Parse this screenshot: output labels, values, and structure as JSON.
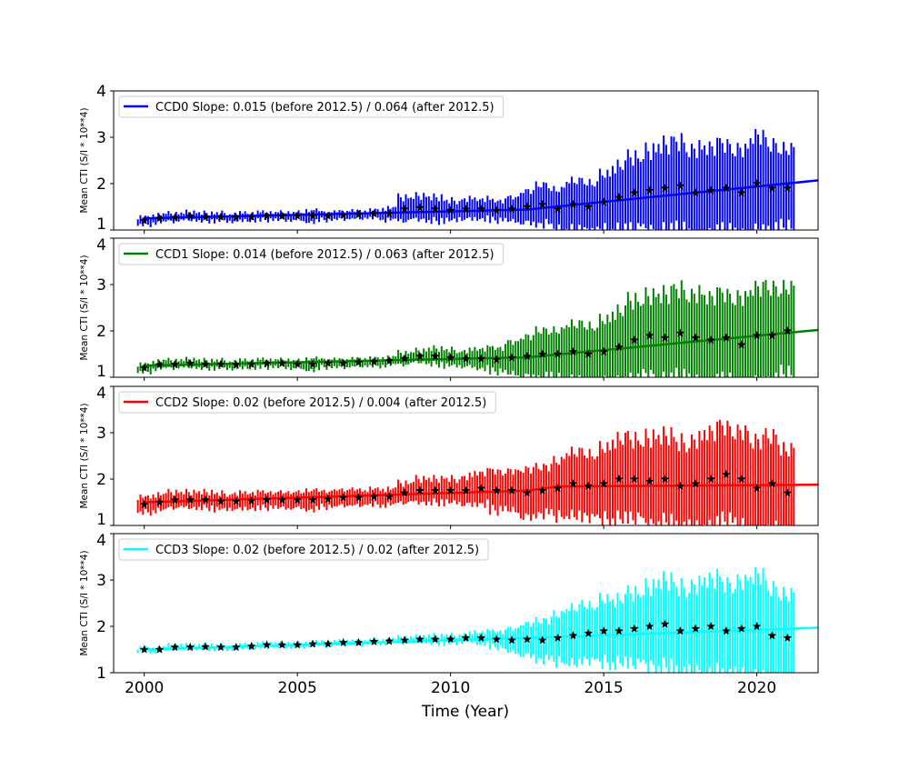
{
  "chart_data": [
    {
      "type": "scatter",
      "legend": "CCD0 Slope: 0.015 (before 2012.5) / 0.064 (after 2012.5)",
      "color": "#0000ff",
      "ylabel": "Mean CTI (S/I * 10**4)",
      "ylim": [
        1,
        4
      ],
      "xlim": [
        1999,
        2022
      ],
      "yticks": [
        "1",
        "2",
        "3",
        "4"
      ],
      "fit": [
        [
          2000,
          1.25
        ],
        [
          2012.5,
          1.44
        ],
        [
          2022,
          2.07
        ]
      ],
      "values": [
        1.2,
        1.25,
        1.27,
        1.3,
        1.28,
        1.28,
        1.27,
        1.28,
        1.3,
        1.3,
        1.3,
        1.3,
        1.3,
        1.32,
        1.33,
        1.35,
        1.35,
        1.45,
        1.48,
        1.45,
        1.42,
        1.45,
        1.45,
        1.42,
        1.45,
        1.5,
        1.55,
        1.45,
        1.55,
        1.5,
        1.6,
        1.7,
        1.8,
        1.85,
        1.9,
        1.95,
        1.8,
        1.85,
        1.9,
        1.8,
        2.0,
        1.9,
        1.9
      ],
      "errors": [
        0.1,
        0.1,
        0.1,
        0.1,
        0.1,
        0.1,
        0.1,
        0.1,
        0.1,
        0.1,
        0.1,
        0.15,
        0.1,
        0.1,
        0.1,
        0.1,
        0.15,
        0.3,
        0.3,
        0.3,
        0.25,
        0.25,
        0.25,
        0.25,
        0.3,
        0.4,
        0.5,
        0.5,
        0.6,
        0.6,
        0.7,
        0.8,
        0.9,
        1.0,
        1.1,
        1.1,
        1.1,
        1.1,
        1.1,
        1.1,
        1.2,
        1.1,
        1.0
      ]
    },
    {
      "type": "scatter",
      "legend": "CCD1 Slope: 0.014 (before 2012.5) / 0.063 (after 2012.5)",
      "color": "#008000",
      "ylabel": "Mean CTI (S/I * 10**4)",
      "ylim": [
        1,
        4
      ],
      "xlim": [
        1999,
        2022
      ],
      "yticks": [
        "1",
        "2",
        "3",
        "4"
      ],
      "fit": [
        [
          2000,
          1.25
        ],
        [
          2012.5,
          1.43
        ],
        [
          2022,
          2.02
        ]
      ],
      "values": [
        1.2,
        1.27,
        1.28,
        1.3,
        1.28,
        1.28,
        1.27,
        1.28,
        1.3,
        1.3,
        1.28,
        1.28,
        1.3,
        1.3,
        1.32,
        1.33,
        1.35,
        1.4,
        1.45,
        1.45,
        1.42,
        1.4,
        1.4,
        1.38,
        1.42,
        1.45,
        1.5,
        1.5,
        1.55,
        1.5,
        1.55,
        1.65,
        1.8,
        1.9,
        1.85,
        1.95,
        1.85,
        1.8,
        1.85,
        1.7,
        1.9,
        1.9,
        2.0
      ],
      "errors": [
        0.1,
        0.1,
        0.1,
        0.1,
        0.1,
        0.1,
        0.1,
        0.1,
        0.1,
        0.1,
        0.1,
        0.15,
        0.1,
        0.1,
        0.1,
        0.1,
        0.1,
        0.15,
        0.15,
        0.2,
        0.2,
        0.2,
        0.25,
        0.3,
        0.4,
        0.5,
        0.6,
        0.6,
        0.7,
        0.7,
        0.8,
        0.9,
        1.0,
        1.0,
        1.1,
        1.1,
        1.1,
        1.1,
        1.1,
        1.2,
        1.2,
        1.2,
        1.1
      ]
    },
    {
      "type": "scatter",
      "legend": "CCD2 Slope: 0.02 (before 2012.5) / 0.004 (after 2012.5)",
      "color": "#ff0000",
      "ylabel": "Mean CTI (S/I * 10**4)",
      "ylim": [
        1,
        4
      ],
      "xlim": [
        1999,
        2022
      ],
      "yticks": [
        "1",
        "2",
        "3",
        "4"
      ],
      "fit": [
        [
          2000,
          1.5
        ],
        [
          2012.5,
          1.75
        ],
        [
          2013.5,
          1.84
        ],
        [
          2022,
          1.88
        ]
      ],
      "values": [
        1.45,
        1.5,
        1.55,
        1.55,
        1.55,
        1.52,
        1.52,
        1.53,
        1.55,
        1.55,
        1.55,
        1.55,
        1.57,
        1.6,
        1.6,
        1.62,
        1.62,
        1.7,
        1.75,
        1.75,
        1.75,
        1.75,
        1.8,
        1.75,
        1.75,
        1.7,
        1.75,
        1.8,
        1.9,
        1.85,
        1.9,
        2.0,
        2.0,
        1.95,
        2.0,
        1.85,
        1.9,
        2.0,
        2.1,
        2.0,
        1.8,
        1.9,
        1.7
      ],
      "errors": [
        0.2,
        0.2,
        0.2,
        0.2,
        0.2,
        0.2,
        0.2,
        0.2,
        0.2,
        0.2,
        0.2,
        0.25,
        0.2,
        0.2,
        0.2,
        0.2,
        0.2,
        0.25,
        0.3,
        0.3,
        0.3,
        0.35,
        0.4,
        0.5,
        0.5,
        0.6,
        0.6,
        0.7,
        0.8,
        0.8,
        0.9,
        1.0,
        1.0,
        1.1,
        1.1,
        1.1,
        1.1,
        1.2,
        1.2,
        1.2,
        1.2,
        1.2,
        1.1
      ]
    },
    {
      "type": "scatter",
      "legend": "CCD3 Slope: 0.02 (before 2012.5) / 0.02 (after 2012.5)",
      "color": "#00ffff",
      "ylabel": "Mean CTI (S/I * 10**4)",
      "ylim": [
        1,
        4
      ],
      "xlim": [
        1999,
        2022
      ],
      "yticks": [
        "1",
        "2",
        "3",
        "4"
      ],
      "fit": [
        [
          2000,
          1.5
        ],
        [
          2012.5,
          1.75
        ],
        [
          2022,
          1.97
        ]
      ],
      "values": [
        1.5,
        1.5,
        1.55,
        1.55,
        1.56,
        1.55,
        1.55,
        1.57,
        1.6,
        1.6,
        1.6,
        1.62,
        1.62,
        1.65,
        1.65,
        1.67,
        1.68,
        1.7,
        1.72,
        1.72,
        1.72,
        1.75,
        1.75,
        1.72,
        1.7,
        1.72,
        1.7,
        1.75,
        1.8,
        1.85,
        1.9,
        1.9,
        1.95,
        2.0,
        2.05,
        1.9,
        1.95,
        2.0,
        1.9,
        1.95,
        2.0,
        1.8,
        1.75
      ],
      "errors": [
        0.05,
        0.05,
        0.05,
        0.05,
        0.05,
        0.05,
        0.05,
        0.05,
        0.05,
        0.05,
        0.05,
        0.05,
        0.05,
        0.05,
        0.05,
        0.05,
        0.05,
        0.07,
        0.07,
        0.1,
        0.1,
        0.1,
        0.15,
        0.2,
        0.3,
        0.4,
        0.5,
        0.6,
        0.7,
        0.7,
        0.8,
        0.8,
        0.9,
        1.0,
        1.1,
        1.1,
        1.1,
        1.2,
        1.2,
        1.2,
        1.3,
        1.2,
        1.1
      ]
    }
  ],
  "x_start": 2000,
  "x_step": 0.5,
  "xlabel": "Time (Year)",
  "xticks": [
    "2000",
    "2005",
    "2010",
    "2015",
    "2020"
  ]
}
